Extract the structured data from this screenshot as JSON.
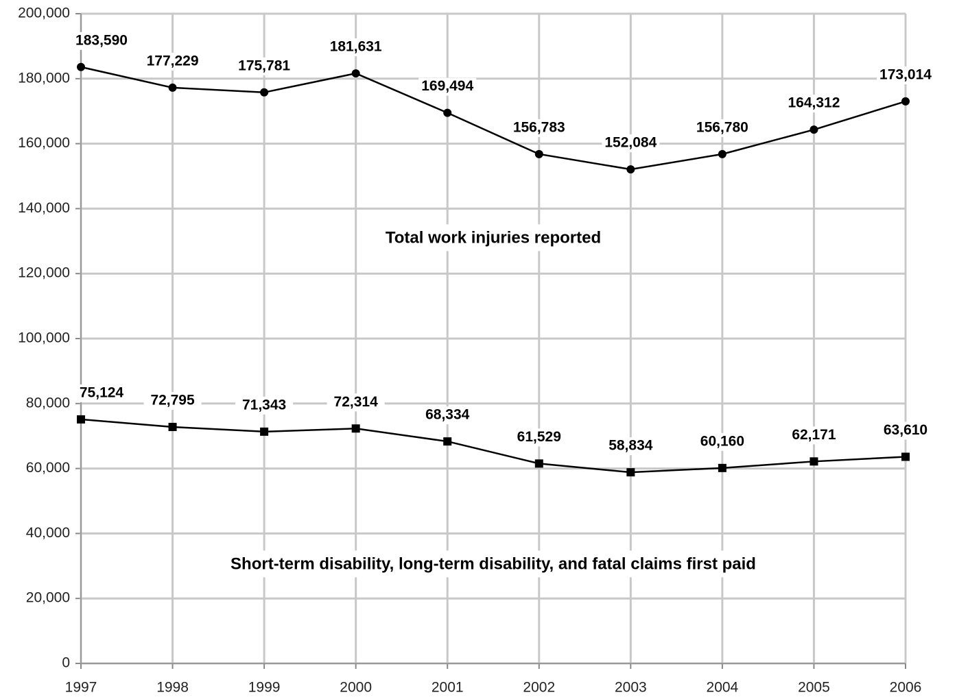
{
  "chart_data": {
    "type": "line",
    "x": [
      1997,
      1998,
      1999,
      2000,
      2001,
      2002,
      2003,
      2004,
      2005,
      2006
    ],
    "xlim": [
      1997,
      2006
    ],
    "xticks": [
      1997,
      1998,
      1999,
      2000,
      2001,
      2002,
      2003,
      2004,
      2005,
      2006
    ],
    "ylim": [
      0,
      200000
    ],
    "yticks": [
      0,
      {
        "value": 20000,
        "label": "20,000"
      },
      {
        "value": 40000,
        "label": "40,000"
      },
      {
        "value": 60000,
        "label": "60,000"
      },
      {
        "value": 80000,
        "label": "80,000"
      },
      {
        "value": 100000,
        "label": "100,000"
      },
      {
        "value": 120000,
        "label": "120,000"
      },
      {
        "value": 140000,
        "label": "140,000"
      },
      {
        "value": 160000,
        "label": "160,000"
      },
      {
        "value": 180000,
        "label": "180,000"
      },
      {
        "value": 200000,
        "label": "200,000"
      }
    ],
    "grid": true,
    "series": [
      {
        "name": "Total work injuries reported",
        "color": "#000000",
        "marker": "circle",
        "values": [
          183590,
          177229,
          175781,
          181631,
          169494,
          156783,
          152084,
          156780,
          164312,
          173014
        ],
        "value_labels": [
          "183,590",
          "177,229",
          "175,781",
          "181,631",
          "169,494",
          "156,783",
          "152,084",
          "156,780",
          "164,312",
          "173,014"
        ]
      },
      {
        "name": "Short-term disability, long-term disability, and fatal claims first paid",
        "color": "#000000",
        "marker": "square",
        "values": [
          75124,
          72795,
          71343,
          72314,
          68334,
          61529,
          58834,
          60160,
          62171,
          63610
        ],
        "value_labels": [
          "75,124",
          "72,795",
          "71,343",
          "72,314",
          "68,334",
          "61,529",
          "58,834",
          "60,160",
          "62,171",
          "63,610"
        ]
      }
    ]
  }
}
